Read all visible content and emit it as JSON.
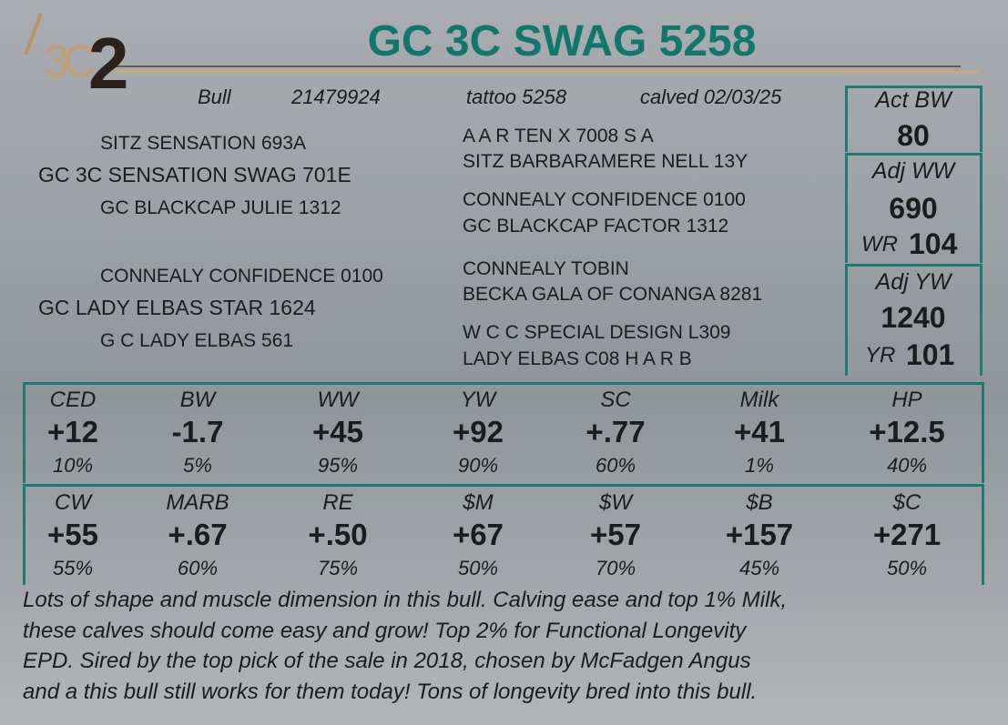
{
  "header": {
    "logo": "3C",
    "lot": "2",
    "title": "GC 3C SWAG 5258"
  },
  "info": [
    "Bull",
    "21479924",
    "tattoo 5258",
    "calved 02/03/25"
  ],
  "measures": [
    {
      "label": "Act BW",
      "value": "80"
    },
    {
      "label": "Adj WW",
      "value": "690",
      "ratio_label": "WR",
      "ratio": "104"
    },
    {
      "label": "Adj YW",
      "value": "1240",
      "ratio_label": "YR",
      "ratio": "101"
    }
  ],
  "pedigree": {
    "sire_sire": "SITZ SENSATION 693A",
    "sire": "GC 3C SENSATION SWAG 701E",
    "sire_dam": "GC BLACKCAP JULIE 1312",
    "dam_sire": "CONNEALY CONFIDENCE 0100",
    "dam": "GC LADY ELBAS STAR 1624",
    "dam_dam": "G C LADY ELBAS 561",
    "grandparents": [
      [
        "A A R TEN X 7008 S A",
        "SITZ BARBARAMERE NELL 13Y"
      ],
      [
        "CONNEALY CONFIDENCE 0100",
        "GC BLACKCAP FACTOR 1312"
      ],
      [
        "CONNEALY TOBIN",
        "BECKA GALA OF CONANGA 8281"
      ],
      [
        "W C C SPECIAL DESIGN L309",
        "LADY ELBAS C08 H A R B"
      ]
    ]
  },
  "epds": [
    [
      {
        "label": "CED",
        "value": "+12",
        "pct": "10%"
      },
      {
        "label": "BW",
        "value": "-1.7",
        "pct": "5%"
      },
      {
        "label": "WW",
        "value": "+45",
        "pct": "95%"
      },
      {
        "label": "YW",
        "value": "+92",
        "pct": "90%"
      },
      {
        "label": "SC",
        "value": "+.77",
        "pct": "60%"
      },
      {
        "label": "Milk",
        "value": "+41",
        "pct": "1%"
      },
      {
        "label": "HP",
        "value": "+12.5",
        "pct": "40%"
      }
    ],
    [
      {
        "label": "CW",
        "value": "+55",
        "pct": "55%"
      },
      {
        "label": "MARB",
        "value": "+.67",
        "pct": "60%"
      },
      {
        "label": "RE",
        "value": "+.50",
        "pct": "75%"
      },
      {
        "label": "$M",
        "value": "+67",
        "pct": "50%"
      },
      {
        "label": "$W",
        "value": "+57",
        "pct": "70%"
      },
      {
        "label": "$B",
        "value": "+157",
        "pct": "45%"
      },
      {
        "label": "$C",
        "value": "+271",
        "pct": "50%"
      }
    ]
  ],
  "description": [
    "Lots of shape and muscle dimension in this bull. Calving ease and top 1% Milk,",
    "these calves should come easy and grow! Top 2% for Functional Longevity",
    "EPD. Sired by the top pick of the sale in 2018, chosen by McFadgen Angus",
    "and a this bull still works for them today! Tons of longevity bred into this bull."
  ]
}
